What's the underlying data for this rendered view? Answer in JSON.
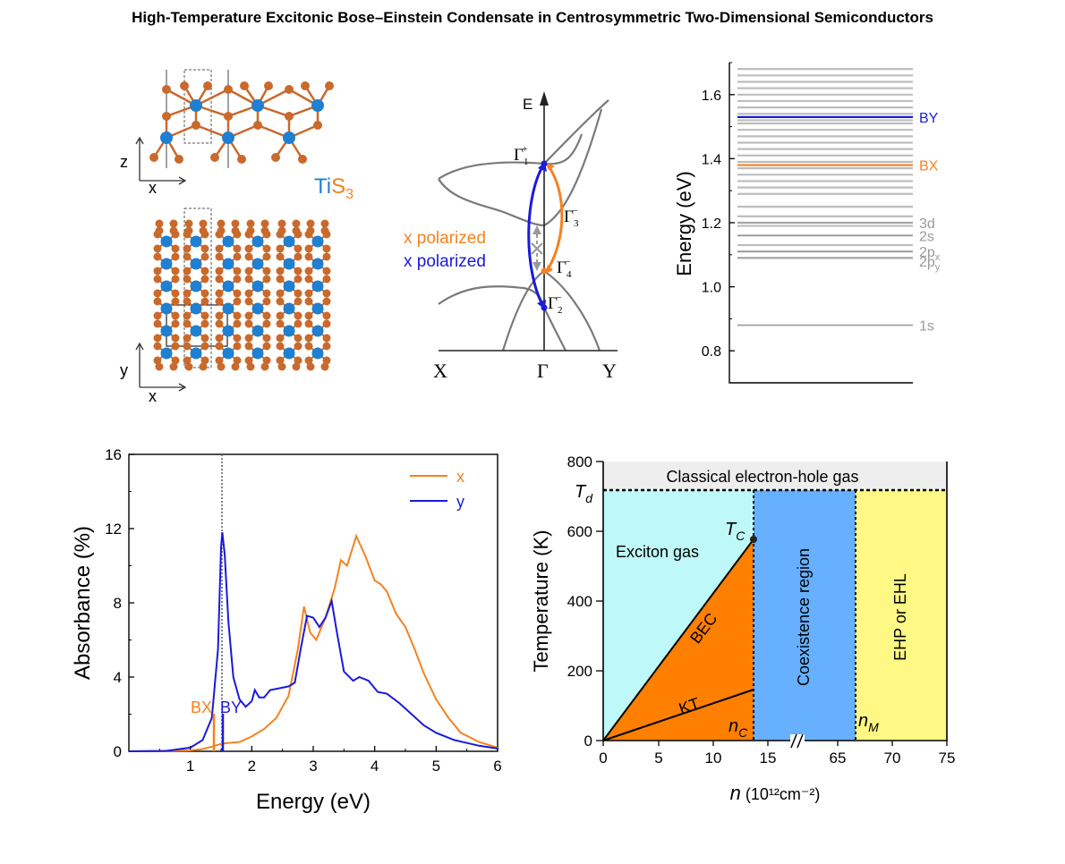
{
  "page": {
    "title": "High-Temperature Excitonic Bose–Einstein Condensate in Centrosymmetric Two-Dimensional Semiconductors"
  },
  "colors": {
    "orange": "#f5821f",
    "blue": "#1a1adb",
    "atom_ti": "#1f7fd1",
    "atom_s": "#c9692c",
    "gray_level": "#bdbdbd",
    "exciton_gas": "#bff8f8",
    "bec": "#ff7f00",
    "coexistence": "#66b0ff",
    "ehp": "#fff884",
    "classical": "#eeeeee"
  },
  "structure": {
    "formula_ti": "Ti",
    "formula_s": "S",
    "formula_sub": "3",
    "axis_z": "z",
    "axis_x_top": "x",
    "axis_y": "y",
    "axis_x_bottom": "x"
  },
  "band_diagram": {
    "energy_axis": "E",
    "kx_left": "X",
    "k_gamma": "Γ",
    "kx_right": "Y",
    "label_g1": "Γ",
    "label_g1_sub": "1",
    "label_g1_sup": "+",
    "label_g3": "Γ",
    "label_g3_sub": "3",
    "label_g3_sup": "−",
    "label_g4": "Γ",
    "label_g4_sub": "4",
    "label_g4_sup": "−",
    "label_g2": "Γ",
    "label_g2_sub": "2",
    "label_g2_sup": "−",
    "legend_x": "x polarized",
    "legend_y": "x polarized"
  },
  "chart_data": [
    {
      "type": "line",
      "ylabel": "Energy (eV)",
      "ylim": [
        0.7,
        1.7
      ],
      "yticks": [
        "0.8",
        "1.0",
        "1.2",
        "1.4",
        "1.6"
      ],
      "gray_levels_ev": [
        1.09,
        1.11,
        1.13,
        1.16,
        1.19,
        1.2,
        1.22,
        1.25,
        1.29,
        1.31,
        1.33,
        1.35,
        1.37,
        1.39,
        1.41,
        1.43,
        1.45,
        1.47,
        1.49,
        1.51,
        1.52,
        1.54,
        1.56,
        1.58,
        1.6,
        1.62,
        1.64,
        1.66,
        1.68
      ],
      "levels": [
        {
          "label": "BY",
          "energy": 1.53,
          "color": "#1a1adb"
        },
        {
          "label": "BX",
          "energy": 1.38,
          "color": "#f5821f"
        },
        {
          "label": "3d",
          "energy": 1.2,
          "color": "#9a9a9a"
        },
        {
          "label": "2s",
          "energy": 1.16,
          "color": "#9a9a9a"
        },
        {
          "label": "2p",
          "sub": "x",
          "energy": 1.11,
          "color": "#9a9a9a"
        },
        {
          "label": "2p",
          "sub": "y",
          "energy": 1.09,
          "color": "#9a9a9a"
        },
        {
          "label": "1s",
          "energy": 0.88,
          "color": "#9a9a9a"
        }
      ]
    },
    {
      "type": "line",
      "xlabel": "Energy (eV)",
      "ylabel": "Absorbance (%)",
      "xlim": [
        0,
        6
      ],
      "ylim": [
        0,
        16
      ],
      "xticks": [
        "1",
        "2",
        "3",
        "4",
        "5",
        "6"
      ],
      "yticks": [
        "0",
        "4",
        "8",
        "12",
        "16"
      ],
      "legend_position": "top-right",
      "annotations": [
        "BX",
        "BY"
      ],
      "series": [
        {
          "name": "x",
          "color": "#f5821f",
          "points": [
            [
              0.0,
              0.0
            ],
            [
              1.0,
              0.05
            ],
            [
              1.2,
              0.12
            ],
            [
              1.35,
              0.25
            ],
            [
              1.5,
              0.4
            ],
            [
              1.6,
              0.45
            ],
            [
              1.8,
              0.5
            ],
            [
              2.0,
              0.8
            ],
            [
              2.2,
              1.2
            ],
            [
              2.4,
              1.8
            ],
            [
              2.6,
              3.0
            ],
            [
              2.75,
              5.5
            ],
            [
              2.85,
              7.8
            ],
            [
              2.95,
              6.4
            ],
            [
              3.05,
              6.0
            ],
            [
              3.2,
              7.2
            ],
            [
              3.35,
              8.8
            ],
            [
              3.45,
              10.3
            ],
            [
              3.55,
              10.0
            ],
            [
              3.7,
              11.6
            ],
            [
              3.85,
              10.5
            ],
            [
              4.0,
              9.2
            ],
            [
              4.1,
              9.0
            ],
            [
              4.2,
              8.6
            ],
            [
              4.35,
              7.4
            ],
            [
              4.5,
              6.7
            ],
            [
              4.65,
              5.5
            ],
            [
              4.8,
              4.2
            ],
            [
              5.0,
              2.8
            ],
            [
              5.2,
              1.8
            ],
            [
              5.4,
              1.0
            ],
            [
              5.7,
              0.5
            ],
            [
              6.0,
              0.2
            ]
          ]
        },
        {
          "name": "y",
          "color": "#1a1adb",
          "points": [
            [
              0.0,
              0.0
            ],
            [
              0.6,
              0.02
            ],
            [
              1.0,
              0.2
            ],
            [
              1.2,
              0.6
            ],
            [
              1.35,
              1.8
            ],
            [
              1.45,
              5.5
            ],
            [
              1.5,
              11.0
            ],
            [
              1.52,
              11.8
            ],
            [
              1.56,
              10.6
            ],
            [
              1.62,
              7.0
            ],
            [
              1.7,
              4.0
            ],
            [
              1.8,
              2.8
            ],
            [
              1.9,
              2.4
            ],
            [
              2.0,
              2.7
            ],
            [
              2.05,
              3.3
            ],
            [
              2.12,
              2.9
            ],
            [
              2.2,
              2.9
            ],
            [
              2.3,
              3.3
            ],
            [
              2.45,
              3.4
            ],
            [
              2.6,
              3.5
            ],
            [
              2.7,
              3.7
            ],
            [
              2.8,
              5.6
            ],
            [
              2.9,
              7.3
            ],
            [
              3.0,
              7.2
            ],
            [
              3.1,
              6.7
            ],
            [
              3.2,
              7.2
            ],
            [
              3.3,
              8.1
            ],
            [
              3.38,
              6.5
            ],
            [
              3.5,
              4.3
            ],
            [
              3.65,
              3.8
            ],
            [
              3.75,
              4.0
            ],
            [
              3.9,
              3.8
            ],
            [
              4.05,
              3.2
            ],
            [
              4.2,
              3.1
            ],
            [
              4.4,
              2.6
            ],
            [
              4.6,
              2.0
            ],
            [
              4.8,
              1.4
            ],
            [
              5.0,
              1.0
            ],
            [
              5.3,
              0.6
            ],
            [
              5.7,
              0.3
            ],
            [
              6.0,
              0.15
            ]
          ]
        }
      ]
    },
    {
      "type": "area",
      "xlabel": "n",
      "xlabel_unit": "(10¹²cm⁻²)",
      "ylabel": "Temperature (K)",
      "ylim": [
        0,
        800
      ],
      "xticks": [
        "0",
        "5",
        "10",
        "15",
        "65",
        "70",
        "75"
      ],
      "yticks": [
        "0",
        "200",
        "400",
        "600",
        "800"
      ],
      "labels": {
        "classical": "Classical electron-hole gas",
        "td": "T",
        "td_sub": "d",
        "tc": "T",
        "tc_sub": "C",
        "exciton_gas": "Exciton gas",
        "bec": "BEC",
        "kt": "KT",
        "nc": "n",
        "nc_sub": "C",
        "nm": "n",
        "nm_sub": "M",
        "coexistence": "Coexistence region",
        "ehp": "EHP or EHL"
      },
      "values": {
        "td_K": 720,
        "tc_K": 580,
        "kt_end_K": 145,
        "nc": 13.7
      }
    }
  ]
}
